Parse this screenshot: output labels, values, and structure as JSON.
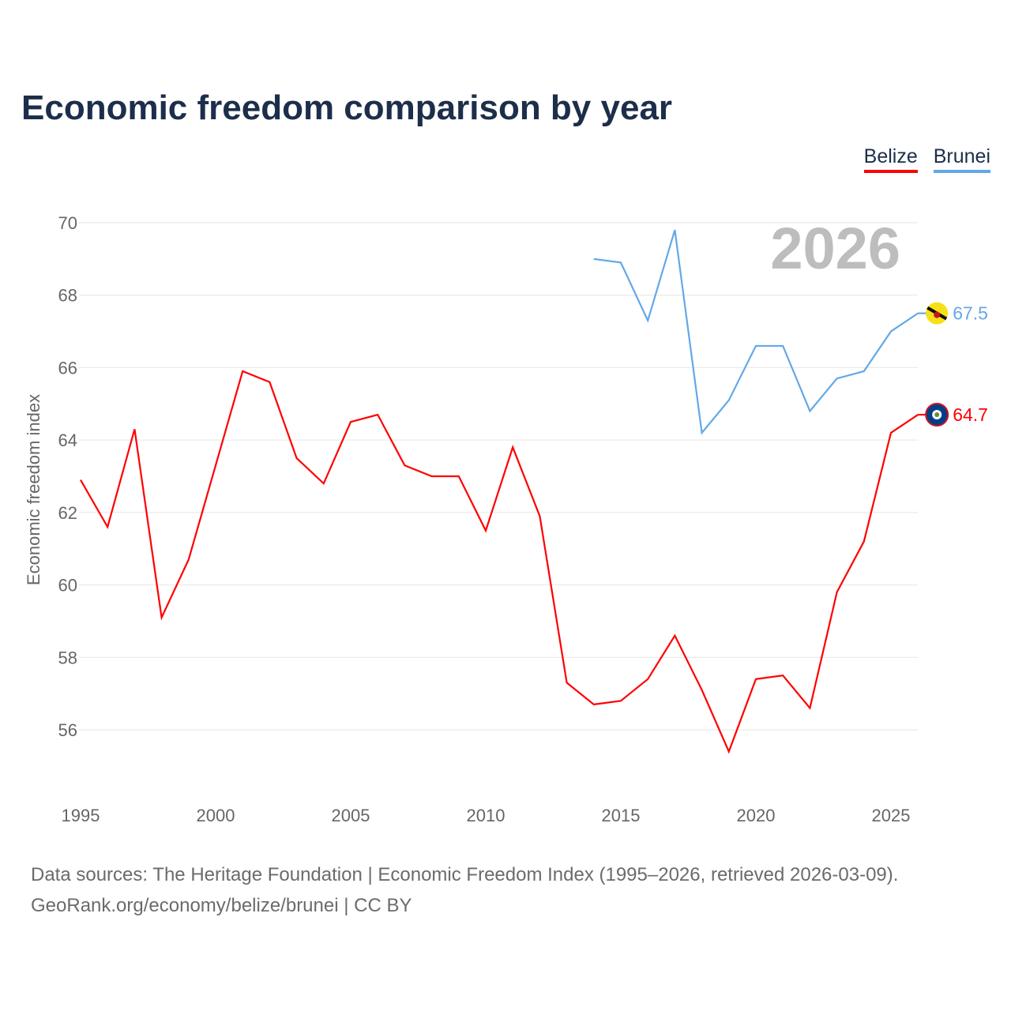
{
  "title": "Economic freedom comparison by year",
  "legend": [
    {
      "name": "Belize",
      "color": "#ff0000"
    },
    {
      "name": "Brunei",
      "color": "#63a8e8"
    }
  ],
  "sources": {
    "line1": "Data sources: The Heritage Foundation | Economic Freedom Index (1995–2026, retrieved 2026-03-09).",
    "line2": "GeoRank.org/economy/belize/brunei | CC BY"
  },
  "chart_data": {
    "type": "line",
    "title": "Economic freedom comparison by year",
    "xlabel": "",
    "ylabel": "Economic freedom index",
    "year_label": "2026",
    "xlim": [
      1995,
      2026
    ],
    "ylim": [
      54.5,
      70
    ],
    "xticks": [
      1995,
      2000,
      2005,
      2010,
      2015,
      2020,
      2025
    ],
    "yticks": [
      56,
      58,
      60,
      62,
      64,
      66,
      68,
      70
    ],
    "grid": true,
    "series": [
      {
        "name": "Belize",
        "color": "#ff0000",
        "end_label": "64.7",
        "x": [
          1995,
          1996,
          1997,
          1998,
          1999,
          2000,
          2001,
          2002,
          2003,
          2004,
          2005,
          2006,
          2007,
          2008,
          2009,
          2010,
          2011,
          2012,
          2013,
          2014,
          2015,
          2016,
          2017,
          2018,
          2019,
          2020,
          2021,
          2022,
          2023,
          2024,
          2025,
          2026
        ],
        "values": [
          62.9,
          61.6,
          64.3,
          59.1,
          60.7,
          63.3,
          65.9,
          65.6,
          63.5,
          62.8,
          64.5,
          64.7,
          63.3,
          63.0,
          63.0,
          61.5,
          63.8,
          61.9,
          57.3,
          56.7,
          56.8,
          57.4,
          58.6,
          57.1,
          55.4,
          57.4,
          57.5,
          56.6,
          59.8,
          61.2,
          64.2,
          64.7
        ]
      },
      {
        "name": "Brunei",
        "color": "#63a8e8",
        "end_label": "67.5",
        "x": [
          2014,
          2015,
          2016,
          2017,
          2018,
          2019,
          2020,
          2021,
          2022,
          2023,
          2024,
          2025,
          2026
        ],
        "values": [
          69.0,
          68.9,
          67.3,
          69.8,
          64.2,
          65.1,
          66.6,
          66.6,
          64.8,
          65.7,
          65.9,
          67.0,
          67.5
        ]
      }
    ]
  }
}
